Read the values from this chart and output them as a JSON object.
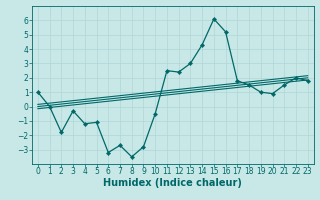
{
  "xlabel": "Humidex (Indice chaleur)",
  "ylabel": "",
  "bg_color": "#c8e8e8",
  "grid_color": "#b0d4d4",
  "line_color": "#006868",
  "xlim": [
    -0.5,
    23.5
  ],
  "ylim": [
    -4,
    7
  ],
  "xticks": [
    0,
    1,
    2,
    3,
    4,
    5,
    6,
    7,
    8,
    9,
    10,
    11,
    12,
    13,
    14,
    15,
    16,
    17,
    18,
    19,
    20,
    21,
    22,
    23
  ],
  "yticks": [
    -3,
    -2,
    -1,
    0,
    1,
    2,
    3,
    4,
    5,
    6
  ],
  "line1_x": [
    0,
    1,
    2,
    3,
    4,
    5,
    6,
    7,
    8,
    9,
    10,
    11,
    12,
    13,
    14,
    15,
    16,
    17,
    18,
    19,
    20,
    21,
    22,
    23
  ],
  "line1_y": [
    1.0,
    0.0,
    -1.8,
    -0.3,
    -1.2,
    -1.1,
    -3.2,
    -2.7,
    -3.5,
    -2.8,
    -0.5,
    2.5,
    2.4,
    3.0,
    4.3,
    6.1,
    5.2,
    1.8,
    1.5,
    1.0,
    0.9,
    1.5,
    2.0,
    1.8
  ],
  "line2_x": [
    0,
    23
  ],
  "line2_y": [
    0.0,
    2.0
  ],
  "line3_x": [
    0,
    23
  ],
  "line3_y": [
    -0.15,
    1.85
  ],
  "line4_x": [
    0,
    23
  ],
  "line4_y": [
    0.15,
    2.15
  ],
  "tick_fontsize": 5.5,
  "xlabel_fontsize": 7
}
